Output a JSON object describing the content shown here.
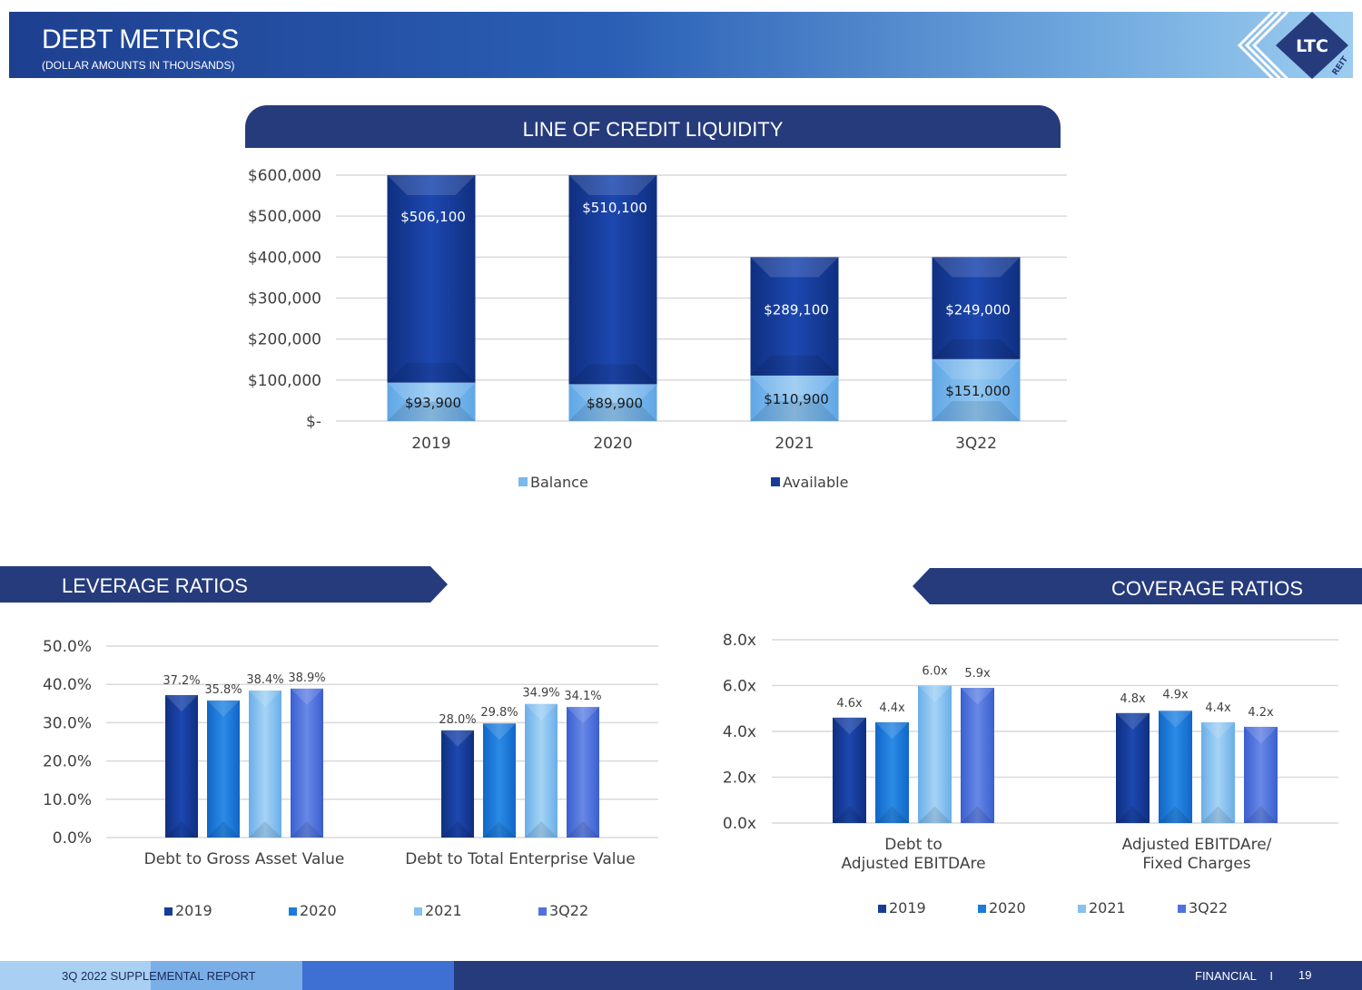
{
  "header": {
    "title": "DEBT METRICS",
    "subtitle": "(DOLLAR AMOUNTS IN THOUSANDS)",
    "logo_text": "LTC",
    "logo_sub": "REIT"
  },
  "sections": {
    "credit_title": "LINE OF CREDIT LIQUIDITY",
    "leverage_title": "LEVERAGE RATIOS",
    "coverage_title": "COVERAGE RATIOS"
  },
  "footer": {
    "left": "3Q 2022 SUPPLEMENTAL REPORT",
    "right": "FINANCIAL",
    "separator": "I",
    "page": "19"
  },
  "colors": {
    "navy": "#263b7c",
    "available": "#173c98",
    "balance": "#79b9ec",
    "s2019": "#173c98",
    "s2020": "#1d7ad9",
    "s2021": "#86c1ef",
    "s3q22": "#4f72dc"
  },
  "chart_data": [
    {
      "type": "bar",
      "stacked": true,
      "categories": [
        "2019",
        "2020",
        "2021",
        "3Q22"
      ],
      "series": [
        {
          "name": "Balance",
          "values": [
            93900,
            89900,
            110900,
            151000
          ],
          "labels": [
            "$93,900",
            "$89,900",
            "$110,900",
            "$151,000"
          ]
        },
        {
          "name": "Available",
          "values": [
            506100,
            510100,
            289100,
            249000
          ],
          "labels": [
            "$506,100",
            "$510,100",
            "$289,100",
            "$249,000"
          ]
        }
      ],
      "ylim": [
        0,
        600000
      ],
      "yticks": [
        0,
        100000,
        200000,
        300000,
        400000,
        500000,
        600000
      ],
      "ytick_labels": [
        "$-",
        "$100,000",
        "$200,000",
        "$300,000",
        "$400,000",
        "$500,000",
        "$600,000"
      ],
      "legend": [
        "Balance",
        "Available"
      ],
      "legend_position": "bottom",
      "grid": true
    },
    {
      "type": "bar",
      "categories": [
        "Debt to Gross Asset Value",
        "Debt to Total Enterprise Value"
      ],
      "series": [
        {
          "name": "2019",
          "values": [
            37.2,
            28.0
          ],
          "labels": [
            "37.2%",
            "28.0%"
          ]
        },
        {
          "name": "2020",
          "values": [
            35.8,
            29.8
          ],
          "labels": [
            "35.8%",
            "29.8%"
          ]
        },
        {
          "name": "2021",
          "values": [
            38.4,
            34.9
          ],
          "labels": [
            "38.4%",
            "34.9%"
          ]
        },
        {
          "name": "3Q22",
          "values": [
            38.9,
            34.1
          ],
          "labels": [
            "38.9%",
            "34.1%"
          ]
        }
      ],
      "ylim": [
        0,
        50
      ],
      "yticks": [
        0,
        10,
        20,
        30,
        40,
        50
      ],
      "ytick_labels": [
        "0.0%",
        "10.0%",
        "20.0%",
        "30.0%",
        "40.0%",
        "50.0%"
      ],
      "legend": [
        "2019",
        "2020",
        "2021",
        "3Q22"
      ],
      "legend_position": "bottom",
      "grid": true
    },
    {
      "type": "bar",
      "categories": [
        "Debt to\nAdjusted EBITDAre",
        "Adjusted EBITDAre/\nFixed Charges"
      ],
      "series": [
        {
          "name": "2019",
          "values": [
            4.6,
            4.8
          ],
          "labels": [
            "4.6x",
            "4.8x"
          ]
        },
        {
          "name": "2020",
          "values": [
            4.4,
            4.9
          ],
          "labels": [
            "4.4x",
            "4.9x"
          ]
        },
        {
          "name": "2021",
          "values": [
            6.0,
            4.4
          ],
          "labels": [
            "6.0x",
            "4.4x"
          ]
        },
        {
          "name": "3Q22",
          "values": [
            5.9,
            4.2
          ],
          "labels": [
            "5.9x",
            "4.2x"
          ]
        }
      ],
      "ylim": [
        0,
        8
      ],
      "yticks": [
        0,
        2,
        4,
        6,
        8
      ],
      "ytick_labels": [
        "0.0x",
        "2.0x",
        "4.0x",
        "6.0x",
        "8.0x"
      ],
      "legend": [
        "2019",
        "2020",
        "2021",
        "3Q22"
      ],
      "legend_position": "bottom",
      "grid": true
    }
  ]
}
